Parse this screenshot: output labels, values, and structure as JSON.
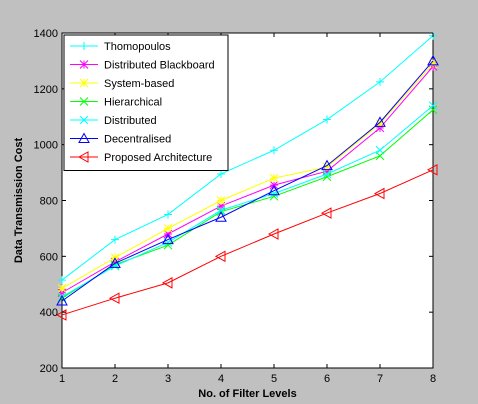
{
  "chart_data": {
    "type": "line",
    "xlabel": "No. of Filter Levels",
    "ylabel": "Data Transmission Cost",
    "xlim": [
      1,
      8
    ],
    "ylim": [
      200,
      1400
    ],
    "x": [
      1,
      2,
      3,
      4,
      5,
      6,
      7,
      8
    ],
    "xticks": [
      1,
      2,
      3,
      4,
      5,
      6,
      7,
      8
    ],
    "yticks": [
      200,
      400,
      600,
      800,
      1000,
      1200,
      1400
    ],
    "grid": false,
    "legend_position": "top-left",
    "series": [
      {
        "name": "Thomopoulos",
        "color": "#00ffff",
        "marker": "plus",
        "values": [
          515,
          660,
          750,
          895,
          980,
          1090,
          1225,
          1390
        ]
      },
      {
        "name": "Distributed Blackboard",
        "color": "#ff00ff",
        "marker": "star",
        "values": [
          470,
          580,
          680,
          780,
          855,
          905,
          1060,
          1280
        ]
      },
      {
        "name": "System-based",
        "color": "#ffff00",
        "marker": "star",
        "values": [
          485,
          595,
          700,
          800,
          880,
          920,
          1075,
          1290
        ]
      },
      {
        "name": "Hierarchical",
        "color": "#00ff00",
        "marker": "x",
        "values": [
          450,
          570,
          640,
          760,
          815,
          885,
          960,
          1125
        ]
      },
      {
        "name": "Distributed",
        "color": "#00ffff",
        "marker": "x",
        "values": [
          455,
          565,
          650,
          765,
          825,
          895,
          980,
          1140
        ]
      },
      {
        "name": "Decentralised",
        "color": "#0000ff",
        "marker": "triangle-up",
        "values": [
          440,
          575,
          660,
          740,
          835,
          925,
          1080,
          1300
        ]
      },
      {
        "name": "Proposed Architecture",
        "color": "#ff0000",
        "marker": "triangle-left",
        "values": [
          390,
          450,
          505,
          600,
          680,
          755,
          825,
          910
        ]
      }
    ]
  }
}
